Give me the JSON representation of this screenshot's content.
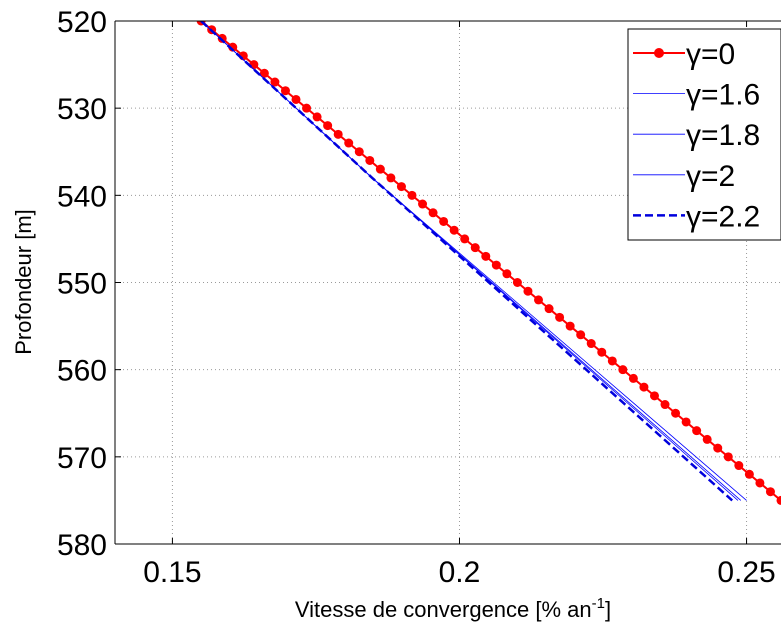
{
  "chart_data": {
    "type": "line",
    "xlabel": "Vitesse de convergence [% an",
    "xlabel_sup": "-1",
    "xlabel_close": "]",
    "ylabel": "Profondeur [m]",
    "xlim": [
      0.14,
      0.256
    ],
    "ylim": [
      520,
      580
    ],
    "y_reversed": true,
    "grid": true,
    "legend_position": "top-right",
    "x_ticks": [
      0.15,
      0.2,
      0.25
    ],
    "x_tick_labels": [
      "0.15",
      "0.2",
      "0.25"
    ],
    "y_ticks": [
      520,
      530,
      540,
      550,
      560,
      570,
      580
    ],
    "y_tick_labels": [
      "520",
      "530",
      "540",
      "550",
      "560",
      "570",
      "580"
    ],
    "series": [
      {
        "name": "γ=0",
        "color": "#ff0000",
        "marker": "dot",
        "dash": "solid",
        "width": 2,
        "x": [
          0.155,
          0.256
        ],
        "y": [
          520,
          575
        ]
      },
      {
        "name": "γ=1.6",
        "color": "#0000ff",
        "marker": "none",
        "dash": "solid",
        "width": 0.8,
        "x": [
          0.155,
          0.1848,
          0.25
        ],
        "y": [
          520,
          538,
          575
        ]
      },
      {
        "name": "γ=1.8",
        "color": "#0000ff",
        "marker": "none",
        "dash": "solid",
        "width": 0.8,
        "x": [
          0.155,
          0.1848,
          0.249
        ],
        "y": [
          520,
          538,
          575
        ]
      },
      {
        "name": "γ=2",
        "color": "#0000ff",
        "marker": "none",
        "dash": "solid",
        "width": 0.8,
        "x": [
          0.155,
          0.1848,
          0.2485
        ],
        "y": [
          520,
          538,
          575
        ]
      },
      {
        "name": "γ=2.2",
        "color": "#0000dd",
        "marker": "none",
        "dash": "dashed",
        "width": 2.5,
        "x": [
          0.155,
          0.1848,
          0.2475
        ],
        "y": [
          520,
          538,
          575
        ]
      }
    ]
  }
}
